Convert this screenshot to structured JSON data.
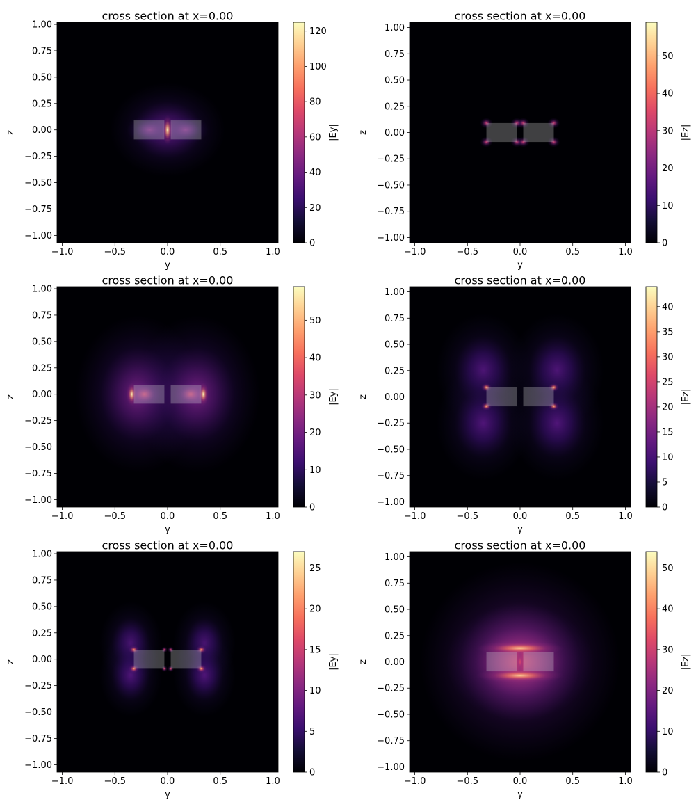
{
  "colors": {
    "structure": "#d3d3d3",
    "axis": "#000000",
    "background": "#000004"
  },
  "colormap": "magma",
  "chart_data": [
    {
      "type": "heatmap",
      "title": "cross section at x=0.00",
      "xlabel": "y",
      "ylabel": "z",
      "colorbar_label": "|Ey|",
      "xlim": [
        -1.05,
        1.05
      ],
      "ylim": [
        -1.07,
        1.02
      ],
      "vmin": 0,
      "vmax": 125,
      "xticks": [
        -1.0,
        -0.5,
        0.0,
        0.5,
        1.0
      ],
      "xtick_labels": [
        "−1.0",
        "−0.5",
        "0.0",
        "0.5",
        "1.0"
      ],
      "yticks": [
        -1.0,
        -0.75,
        -0.5,
        -0.25,
        0.0,
        0.25,
        0.5,
        0.75,
        1.0
      ],
      "ytick_labels": [
        "−1.00",
        "−0.75",
        "−0.50",
        "−0.25",
        "0.00",
        "0.25",
        "0.50",
        "0.75",
        "1.00"
      ],
      "cbar_ticks": [
        0,
        20,
        40,
        60,
        80,
        100,
        120
      ],
      "cbar_tick_labels": [
        "0",
        "20",
        "40",
        "60",
        "80",
        "100",
        "120"
      ],
      "waveguides": [
        [
          -0.32,
          -0.03,
          -0.09,
          0.09
        ],
        [
          0.03,
          0.32,
          -0.09,
          0.09
        ]
      ],
      "field": "gap_ey"
    },
    {
      "type": "heatmap",
      "title": "cross section at x=0.00",
      "xlabel": "y",
      "ylabel": "z",
      "colorbar_label": "|Ez|",
      "xlim": [
        -1.05,
        1.05
      ],
      "ylim": [
        -1.05,
        1.05
      ],
      "vmin": 0,
      "vmax": 59,
      "xticks": [
        -1.0,
        -0.5,
        0.0,
        0.5,
        1.0
      ],
      "xtick_labels": [
        "−1.0",
        "−0.5",
        "0.0",
        "0.5",
        "1.0"
      ],
      "yticks": [
        -1.0,
        -0.75,
        -0.5,
        -0.25,
        0.0,
        0.25,
        0.5,
        0.75,
        1.0
      ],
      "ytick_labels": [
        "−1.00",
        "−0.75",
        "−0.50",
        "−0.25",
        "0.00",
        "0.25",
        "0.50",
        "0.75",
        "1.00"
      ],
      "cbar_ticks": [
        0,
        10,
        20,
        30,
        40,
        50
      ],
      "cbar_tick_labels": [
        "0",
        "10",
        "20",
        "30",
        "40",
        "50"
      ],
      "waveguides": [
        [
          -0.32,
          -0.03,
          -0.09,
          0.09
        ],
        [
          0.03,
          0.32,
          -0.09,
          0.09
        ]
      ],
      "field": "corner_ez_weak"
    },
    {
      "type": "heatmap",
      "title": "cross section at x=0.00",
      "xlabel": "y",
      "ylabel": "z",
      "colorbar_label": "|Ey|",
      "xlim": [
        -1.05,
        1.05
      ],
      "ylim": [
        -1.07,
        1.02
      ],
      "vmin": 0,
      "vmax": 59,
      "xticks": [
        -1.0,
        -0.5,
        0.0,
        0.5,
        1.0
      ],
      "xtick_labels": [
        "−1.0",
        "−0.5",
        "0.0",
        "0.5",
        "1.0"
      ],
      "yticks": [
        -1.0,
        -0.75,
        -0.5,
        -0.25,
        0.0,
        0.25,
        0.5,
        0.75,
        1.0
      ],
      "ytick_labels": [
        "−1.00",
        "−0.75",
        "−0.50",
        "−0.25",
        "0.00",
        "0.25",
        "0.50",
        "0.75",
        "1.00"
      ],
      "cbar_ticks": [
        0,
        10,
        20,
        30,
        40,
        50
      ],
      "cbar_tick_labels": [
        "0",
        "10",
        "20",
        "30",
        "40",
        "50"
      ],
      "waveguides": [
        [
          -0.32,
          -0.03,
          -0.09,
          0.09
        ],
        [
          0.03,
          0.32,
          -0.09,
          0.09
        ]
      ],
      "field": "edge_ey"
    },
    {
      "type": "heatmap",
      "title": "cross section at x=0.00",
      "xlabel": "y",
      "ylabel": "z",
      "colorbar_label": "|Ez|",
      "xlim": [
        -1.05,
        1.05
      ],
      "ylim": [
        -1.05,
        1.05
      ],
      "vmin": 0,
      "vmax": 44,
      "xticks": [
        -1.0,
        -0.5,
        0.0,
        0.5,
        1.0
      ],
      "xtick_labels": [
        "−1.0",
        "−0.5",
        "0.0",
        "0.5",
        "1.0"
      ],
      "yticks": [
        -1.0,
        -0.75,
        -0.5,
        -0.25,
        0.0,
        0.25,
        0.5,
        0.75,
        1.0
      ],
      "ytick_labels": [
        "−1.00",
        "−0.75",
        "−0.50",
        "−0.25",
        "0.00",
        "0.25",
        "0.50",
        "0.75",
        "1.00"
      ],
      "cbar_ticks": [
        0,
        5,
        10,
        15,
        20,
        25,
        30,
        35,
        40
      ],
      "cbar_tick_labels": [
        "0",
        "5",
        "10",
        "15",
        "20",
        "25",
        "30",
        "35",
        "40"
      ],
      "waveguides": [
        [
          -0.32,
          -0.03,
          -0.09,
          0.09
        ],
        [
          0.03,
          0.32,
          -0.09,
          0.09
        ]
      ],
      "field": "corner_ez_broad"
    },
    {
      "type": "heatmap",
      "title": "cross section at x=0.00",
      "xlabel": "y",
      "ylabel": "z",
      "colorbar_label": "|Ey|",
      "xlim": [
        -1.05,
        1.05
      ],
      "ylim": [
        -1.07,
        1.02
      ],
      "vmin": 0,
      "vmax": 27,
      "xticks": [
        -1.0,
        -0.5,
        0.0,
        0.5,
        1.0
      ],
      "xtick_labels": [
        "−1.0",
        "−0.5",
        "0.0",
        "0.5",
        "1.0"
      ],
      "yticks": [
        -1.0,
        -0.75,
        -0.5,
        -0.25,
        0.0,
        0.25,
        0.5,
        0.75,
        1.0
      ],
      "ytick_labels": [
        "−1.00",
        "−0.75",
        "−0.50",
        "−0.25",
        "0.00",
        "0.25",
        "0.50",
        "0.75",
        "1.00"
      ],
      "cbar_ticks": [
        0,
        5,
        10,
        15,
        20,
        25
      ],
      "cbar_tick_labels": [
        "0",
        "5",
        "10",
        "15",
        "20",
        "25"
      ],
      "waveguides": [
        [
          -0.32,
          -0.03,
          -0.09,
          0.09
        ],
        [
          0.03,
          0.32,
          -0.09,
          0.09
        ]
      ],
      "field": "corner_ey"
    },
    {
      "type": "heatmap",
      "title": "cross section at x=0.00",
      "xlabel": "y",
      "ylabel": "z",
      "colorbar_label": "|Ez|",
      "xlim": [
        -1.05,
        1.05
      ],
      "ylim": [
        -1.05,
        1.05
      ],
      "vmin": 0,
      "vmax": 54,
      "xticks": [
        -1.0,
        -0.5,
        0.0,
        0.5,
        1.0
      ],
      "xtick_labels": [
        "−1.0",
        "−0.5",
        "0.0",
        "0.5",
        "1.0"
      ],
      "yticks": [
        -1.0,
        -0.75,
        -0.5,
        -0.25,
        0.0,
        0.25,
        0.5,
        0.75,
        1.0
      ],
      "ytick_labels": [
        "−1.00",
        "−0.75",
        "−0.50",
        "−0.25",
        "0.00",
        "0.25",
        "0.50",
        "0.75",
        "1.00"
      ],
      "cbar_ticks": [
        0,
        10,
        20,
        30,
        40,
        50
      ],
      "cbar_tick_labels": [
        "0",
        "10",
        "20",
        "30",
        "40",
        "50"
      ],
      "waveguides": [
        [
          -0.32,
          -0.03,
          -0.09,
          0.09
        ],
        [
          0.03,
          0.32,
          -0.09,
          0.09
        ]
      ],
      "field": "slab_ez"
    }
  ]
}
